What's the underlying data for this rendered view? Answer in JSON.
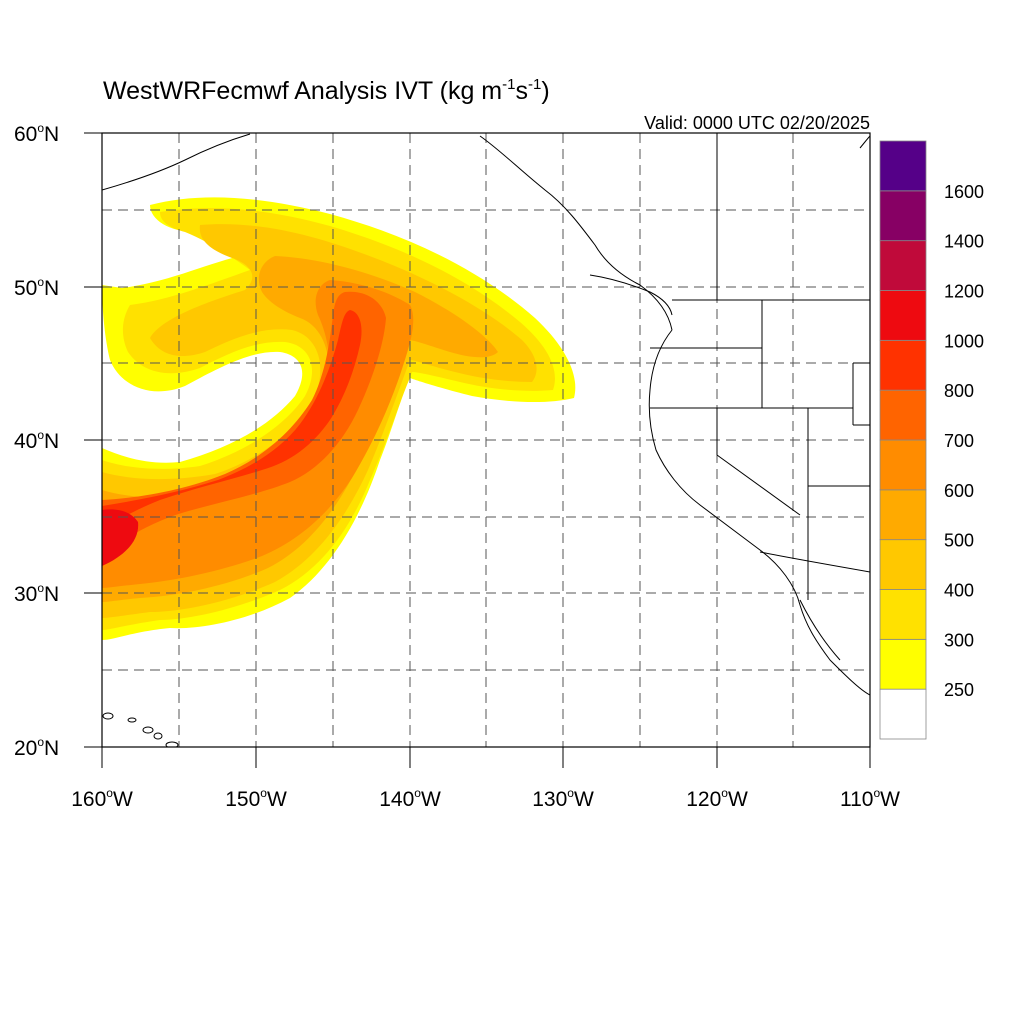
{
  "title": {
    "main": "WestWRFecmwf Analysis IVT (kg m",
    "sup1": "-1",
    "mid": "s",
    "sup2": "-1",
    "end": ")"
  },
  "valid_label": "Valid: 0000 UTC 02/20/2025",
  "lat_labels": [
    {
      "deg": "60",
      "hemi": "N",
      "value": 60
    },
    {
      "deg": "50",
      "hemi": "N",
      "value": 50
    },
    {
      "deg": "40",
      "hemi": "N",
      "value": 40
    },
    {
      "deg": "30",
      "hemi": "N",
      "value": 30
    },
    {
      "deg": "20",
      "hemi": "N",
      "value": 20
    }
  ],
  "lon_labels": [
    {
      "deg": "160",
      "hemi": "W",
      "value": -160
    },
    {
      "deg": "150",
      "hemi": "W",
      "value": -150
    },
    {
      "deg": "140",
      "hemi": "W",
      "value": -140
    },
    {
      "deg": "130",
      "hemi": "W",
      "value": -130
    },
    {
      "deg": "120",
      "hemi": "W",
      "value": -120
    },
    {
      "deg": "110",
      "hemi": "W",
      "value": -110
    }
  ],
  "map_extent": {
    "lon_min": -160,
    "lon_max": -110,
    "lat_min": 20,
    "lat_max": 60
  },
  "colorbar": {
    "levels": [
      {
        "lo": 0,
        "color": "#ffffff"
      },
      {
        "lo": 250,
        "color": "#ffff00"
      },
      {
        "lo": 300,
        "color": "#ffe100"
      },
      {
        "lo": 400,
        "color": "#ffc800"
      },
      {
        "lo": 500,
        "color": "#ffaa00"
      },
      {
        "lo": 600,
        "color": "#ff8c00"
      },
      {
        "lo": 700,
        "color": "#ff6400"
      },
      {
        "lo": 800,
        "color": "#ff3200"
      },
      {
        "lo": 1000,
        "color": "#ee0a10"
      },
      {
        "lo": 1200,
        "color": "#c00a3a"
      },
      {
        "lo": 1400,
        "color": "#870064"
      },
      {
        "lo": 1600,
        "color": "#550088"
      }
    ],
    "labels": [
      "250",
      "300",
      "400",
      "500",
      "600",
      "700",
      "800",
      "1000",
      "1200",
      "1400",
      "1600"
    ]
  }
}
